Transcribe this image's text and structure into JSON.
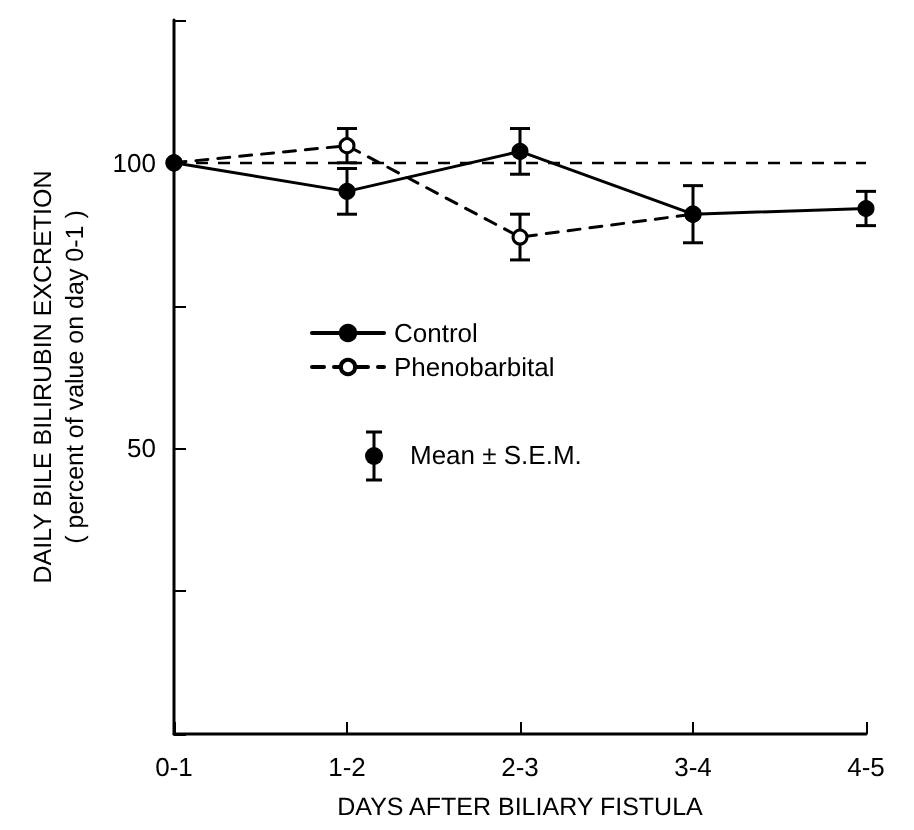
{
  "chart_data": {
    "type": "line",
    "xlabel": "DAYS AFTER BILIARY FISTULA",
    "ylabel": "DAILY BILE BILIRUBIN EXCRETION\n( percent of value on day 0-1 )",
    "categories": [
      "0-1",
      "1-2",
      "2-3",
      "3-4",
      "4-5"
    ],
    "series": [
      {
        "name": "Control",
        "color": "#000000",
        "values": [
          100,
          95,
          102,
          91,
          92
        ],
        "errors": [
          null,
          4,
          4,
          5,
          3
        ],
        "marker": "circle",
        "line_style": "solid"
      },
      {
        "name": "Phenobarbital",
        "color": "#000000",
        "values": [
          100,
          103,
          87,
          91,
          null
        ],
        "errors": [
          null,
          3,
          4,
          null,
          null
        ],
        "marker": "circle",
        "line_style": "dashed"
      }
    ],
    "ylim": [
      0,
      125
    ],
    "yticks": [
      {
        "value": 0,
        "label": null
      },
      {
        "value": 25,
        "label": null
      },
      50,
      {
        "value": 75,
        "label": null
      },
      100,
      {
        "value": 125,
        "label": null
      }
    ],
    "ref_lines": [
      {
        "axis": "y",
        "value": 100,
        "line_style": "dashed",
        "color": "#000000"
      }
    ],
    "annotations": [
      "Mean ± S.E.M."
    ],
    "legend": "center",
    "grid": false
  }
}
